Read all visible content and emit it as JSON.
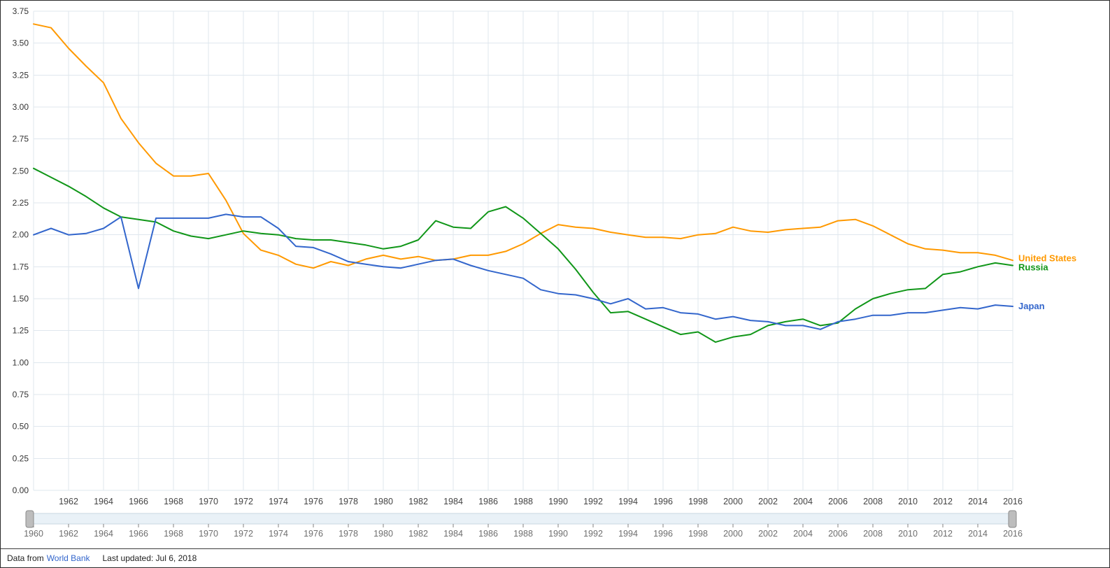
{
  "chart_data": {
    "type": "line",
    "title": "",
    "xlabel": "",
    "ylabel": "",
    "ylim": [
      0,
      3.75
    ],
    "y_tick_step": 0.25,
    "grid": true,
    "grid_color": "#dfe7ee",
    "legend_position": "line-end-labels-right",
    "years": [
      1960,
      1961,
      1962,
      1963,
      1964,
      1965,
      1966,
      1967,
      1968,
      1969,
      1970,
      1971,
      1972,
      1973,
      1974,
      1975,
      1976,
      1977,
      1978,
      1979,
      1980,
      1981,
      1982,
      1983,
      1984,
      1985,
      1986,
      1987,
      1988,
      1989,
      1990,
      1991,
      1992,
      1993,
      1994,
      1995,
      1996,
      1997,
      1998,
      1999,
      2000,
      2001,
      2002,
      2003,
      2004,
      2005,
      2006,
      2007,
      2008,
      2009,
      2010,
      2011,
      2012,
      2013,
      2014,
      2015,
      2016
    ],
    "y_ticks": [
      "0.00",
      "0.25",
      "0.50",
      "0.75",
      "1.00",
      "1.25",
      "1.50",
      "1.75",
      "2.00",
      "2.25",
      "2.50",
      "2.75",
      "3.00",
      "3.25",
      "3.50",
      "3.75"
    ],
    "x_ticks": [
      "1962",
      "1964",
      "1966",
      "1968",
      "1970",
      "1972",
      "1974",
      "1976",
      "1978",
      "1980",
      "1982",
      "1984",
      "1986",
      "1988",
      "1990",
      "1992",
      "1994",
      "1996",
      "1998",
      "2000",
      "2002",
      "2004",
      "2006",
      "2008",
      "2010",
      "2012",
      "2014",
      "2016"
    ],
    "series": [
      {
        "name": "United States",
        "color": "#ff9900",
        "values": [
          3.65,
          3.62,
          3.46,
          3.32,
          3.19,
          2.91,
          2.72,
          2.56,
          2.46,
          2.46,
          2.48,
          2.27,
          2.01,
          1.88,
          1.84,
          1.77,
          1.74,
          1.79,
          1.76,
          1.81,
          1.84,
          1.81,
          1.83,
          1.8,
          1.81,
          1.84,
          1.84,
          1.87,
          1.93,
          2.01,
          2.08,
          2.06,
          2.05,
          2.02,
          2.0,
          1.98,
          1.98,
          1.97,
          2.0,
          2.01,
          2.06,
          2.03,
          2.02,
          2.04,
          2.05,
          2.06,
          2.11,
          2.12,
          2.07,
          2.0,
          1.93,
          1.89,
          1.88,
          1.86,
          1.86,
          1.84,
          1.8
        ]
      },
      {
        "name": "Russia",
        "color": "#109618",
        "values": [
          2.52,
          2.45,
          2.38,
          2.3,
          2.21,
          2.14,
          2.12,
          2.1,
          2.03,
          1.99,
          1.97,
          2.0,
          2.03,
          2.01,
          2.0,
          1.97,
          1.96,
          1.96,
          1.94,
          1.92,
          1.89,
          1.91,
          1.96,
          2.11,
          2.06,
          2.05,
          2.18,
          2.22,
          2.13,
          2.01,
          1.89,
          1.73,
          1.55,
          1.39,
          1.4,
          1.34,
          1.28,
          1.22,
          1.24,
          1.16,
          1.2,
          1.22,
          1.29,
          1.32,
          1.34,
          1.29,
          1.31,
          1.42,
          1.5,
          1.54,
          1.57,
          1.58,
          1.69,
          1.71,
          1.75,
          1.78,
          1.76
        ]
      },
      {
        "name": "Japan",
        "color": "#3366cc",
        "values": [
          2.0,
          2.05,
          2.0,
          2.01,
          2.05,
          2.14,
          1.58,
          2.13,
          2.13,
          2.13,
          2.13,
          2.16,
          2.14,
          2.14,
          2.05,
          1.91,
          1.9,
          1.85,
          1.79,
          1.77,
          1.75,
          1.74,
          1.77,
          1.8,
          1.81,
          1.76,
          1.72,
          1.69,
          1.66,
          1.57,
          1.54,
          1.53,
          1.5,
          1.46,
          1.5,
          1.42,
          1.43,
          1.39,
          1.38,
          1.34,
          1.36,
          1.33,
          1.32,
          1.29,
          1.29,
          1.26,
          1.32,
          1.34,
          1.37,
          1.37,
          1.39,
          1.39,
          1.41,
          1.43,
          1.42,
          1.45,
          1.44
        ]
      }
    ]
  },
  "slider": {
    "range_start": "1960",
    "range_end": "2016",
    "tick_years": [
      "1960",
      "1962",
      "1964",
      "1966",
      "1968",
      "1970",
      "1972",
      "1974",
      "1976",
      "1978",
      "1980",
      "1982",
      "1984",
      "1986",
      "1988",
      "1990",
      "1992",
      "1994",
      "1996",
      "1998",
      "2000",
      "2002",
      "2004",
      "2006",
      "2008",
      "2010",
      "2012",
      "2014",
      "2016"
    ]
  },
  "footer": {
    "prefix": "Data from",
    "link_label": "World Bank",
    "last_updated": "Last updated: Jul 6, 2018"
  }
}
